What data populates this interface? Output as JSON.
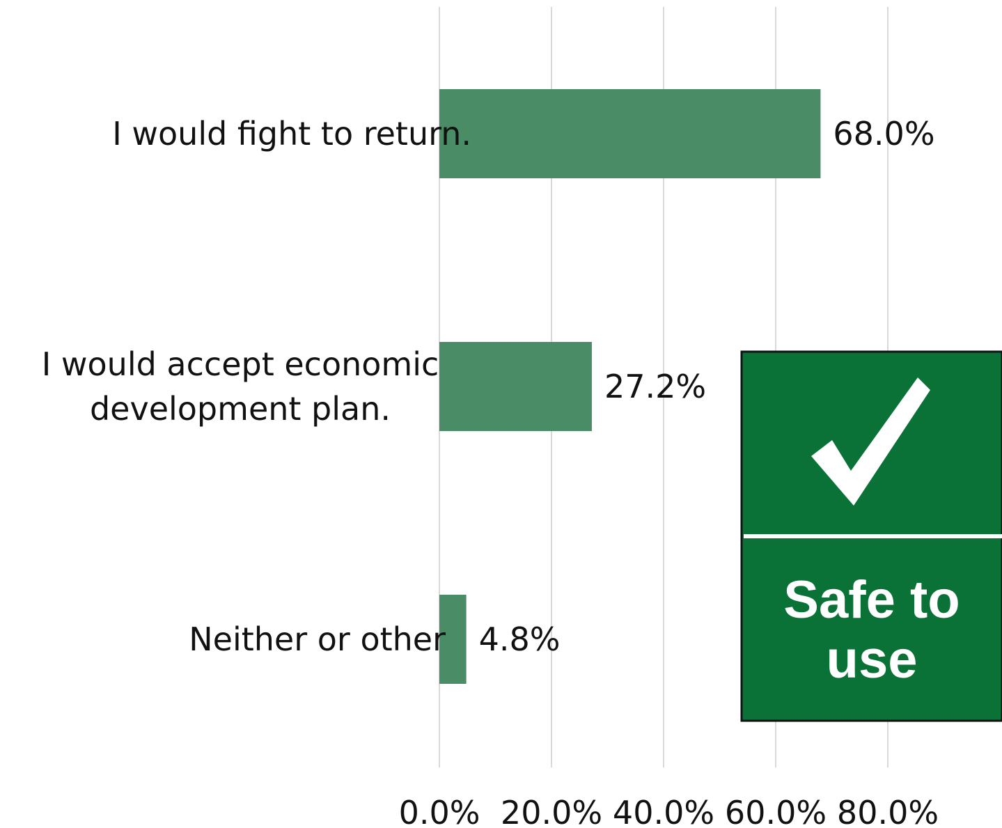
{
  "chart_data": {
    "type": "bar",
    "orientation": "horizontal",
    "categories": [
      [
        "I would fight to return."
      ],
      [
        "I would accept economic",
        "development plan."
      ],
      [
        "Neither or other"
      ]
    ],
    "values": [
      68.0,
      27.2,
      4.8
    ],
    "data_labels": [
      "68.0%",
      "27.2%",
      "4.8%"
    ],
    "xlim": [
      0,
      80
    ],
    "x_ticks": [
      0,
      20,
      40,
      60,
      80
    ],
    "x_tick_labels": [
      "0.0%",
      "20.0%",
      "40.0%",
      "60.0%",
      "80.0%"
    ],
    "grid": true,
    "legend": "none",
    "bar_color": "#4a8c66",
    "grid_color": "#d9d9d9"
  },
  "sign": {
    "text_lines": [
      "Safe to",
      "use"
    ],
    "icon": "checkmark-icon",
    "background_color": "#0a7236",
    "border_color": "#111111"
  }
}
